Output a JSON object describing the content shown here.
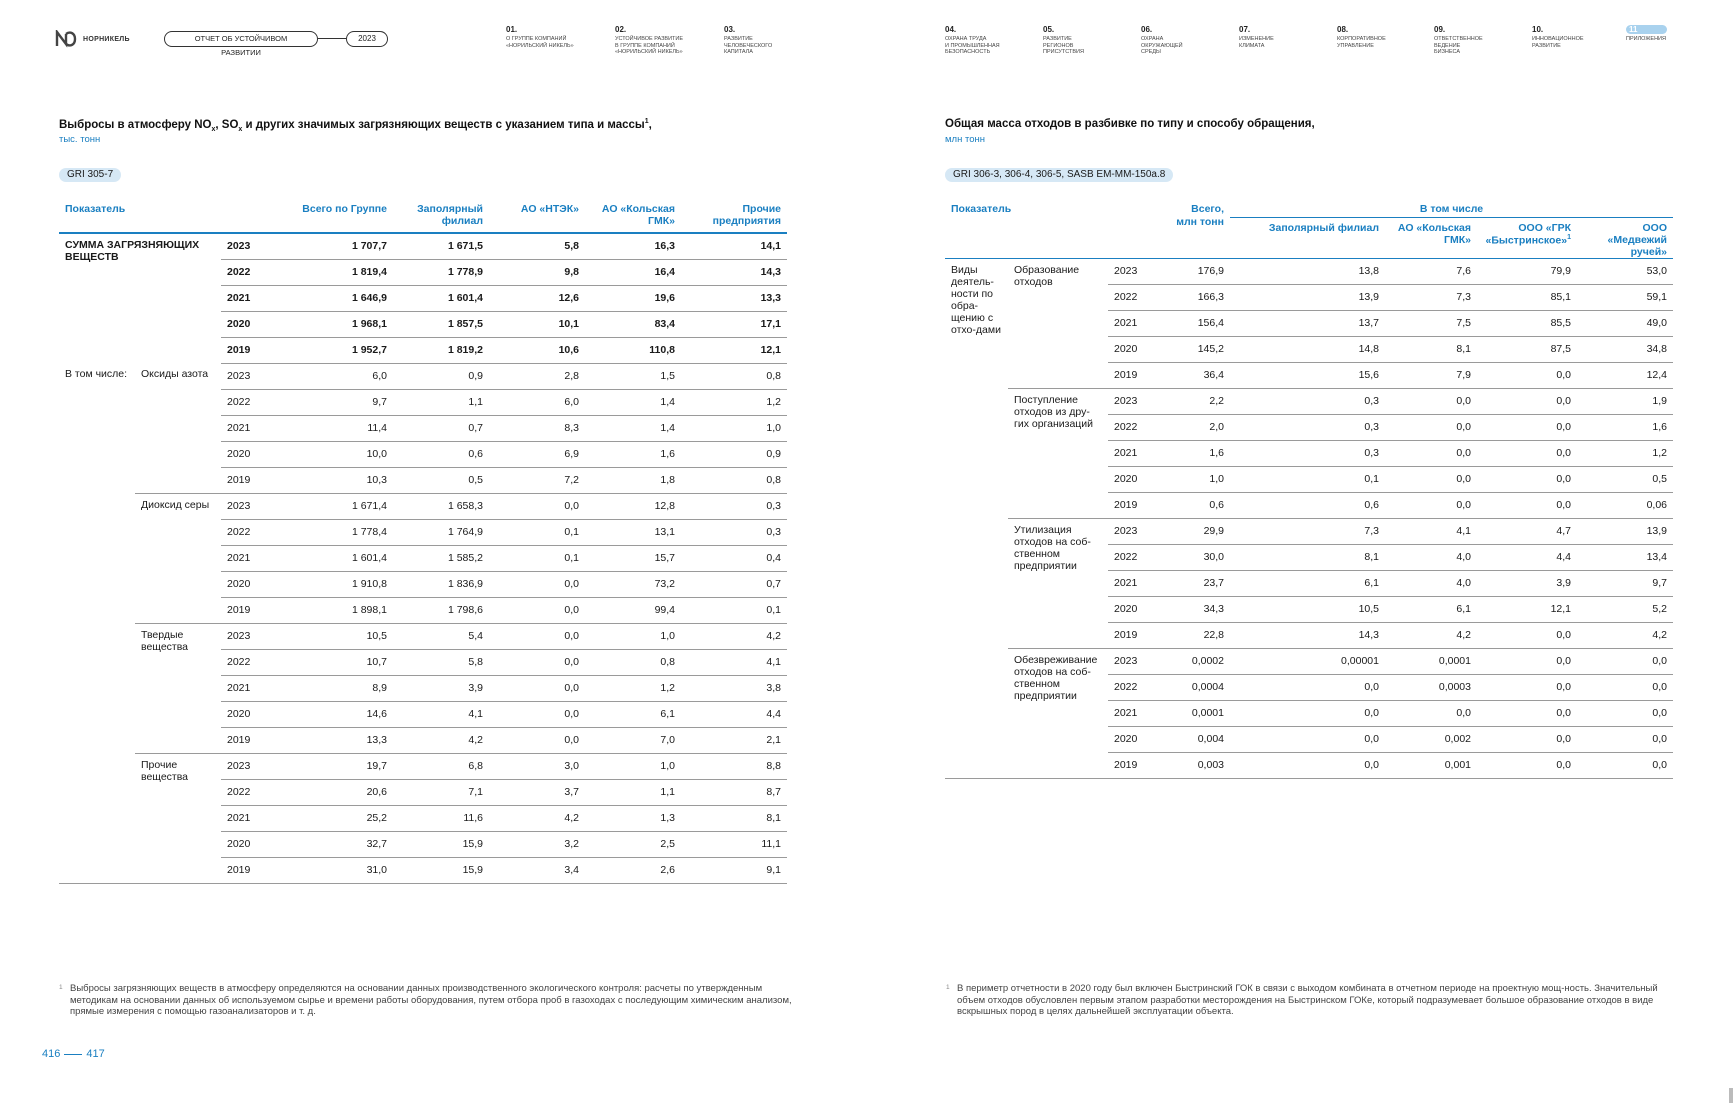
{
  "header": {
    "logo_text": "НОРНИКЕЛЬ",
    "report_label": "ОТЧЕТ ОБ УСТОЙЧИВОМ РАЗВИТИИ",
    "year": "2023",
    "nav": [
      {
        "num": "01.",
        "title": "О группе компаний\n«Норильский никель»"
      },
      {
        "num": "02.",
        "title": "Устойчивое развитие\nв группе компаний\n«Норильский никель»"
      },
      {
        "num": "03.",
        "title": "Развитие\nчеловеческого\nкапитала"
      },
      {
        "num": "04.",
        "title": "Охрана труда\nи промышленная\nбезопасность"
      },
      {
        "num": "05.",
        "title": "Развитие\nрегионов\nприсутствия"
      },
      {
        "num": "06.",
        "title": "Охрана\nокружающей\nсреды"
      },
      {
        "num": "07.",
        "title": "Изменение\nклимата"
      },
      {
        "num": "08.",
        "title": "Корпоративное\nуправление"
      },
      {
        "num": "09.",
        "title": "Ответственное\nведение\nбизнеса"
      },
      {
        "num": "10.",
        "title": "Инновационное\nразвитие"
      },
      {
        "num": "11",
        "title": "Приложения"
      }
    ]
  },
  "left": {
    "title_part1": "Выбросы в атмосферу NO",
    "title_sub1": "x",
    "title_part2": ", SO",
    "title_sub2": "x",
    "title_part3": " и других значимых загрязняющих веществ с указанием типа и массы",
    "title_fn": "1",
    "title_end": ",",
    "unit": "тыс. тонн",
    "gri": "GRI 305-7",
    "columns": [
      "Показатель",
      "Всего по Группе",
      "Заполярный филиал",
      "АО «НТЭК»",
      "АО «Кольская ГМК»",
      "Прочие предприятия"
    ],
    "total_label": "СУММА ЗАГРЯЗНЯЮЩИХ ВЕЩЕСТВ",
    "including_label": "В том числе:",
    "total_rows": [
      [
        "2023",
        "1 707,7",
        "1 671,5",
        "5,8",
        "16,3",
        "14,1"
      ],
      [
        "2022",
        "1 819,4",
        "1 778,9",
        "9,8",
        "16,4",
        "14,3"
      ],
      [
        "2021",
        "1 646,9",
        "1 601,4",
        "12,6",
        "19,6",
        "13,3"
      ],
      [
        "2020",
        "1 968,1",
        "1 857,5",
        "10,1",
        "83,4",
        "17,1"
      ],
      [
        "2019",
        "1 952,7",
        "1 819,2",
        "10,6",
        "110,8",
        "12,1"
      ]
    ],
    "groups": [
      {
        "label": "Оксиды азота",
        "rows": [
          [
            "2023",
            "6,0",
            "0,9",
            "2,8",
            "1,5",
            "0,8"
          ],
          [
            "2022",
            "9,7",
            "1,1",
            "6,0",
            "1,4",
            "1,2"
          ],
          [
            "2021",
            "11,4",
            "0,7",
            "8,3",
            "1,4",
            "1,0"
          ],
          [
            "2020",
            "10,0",
            "0,6",
            "6,9",
            "1,6",
            "0,9"
          ],
          [
            "2019",
            "10,3",
            "0,5",
            "7,2",
            "1,8",
            "0,8"
          ]
        ]
      },
      {
        "label": "Диоксид серы",
        "rows": [
          [
            "2023",
            "1 671,4",
            "1 658,3",
            "0,0",
            "12,8",
            "0,3"
          ],
          [
            "2022",
            "1 778,4",
            "1 764,9",
            "0,1",
            "13,1",
            "0,3"
          ],
          [
            "2021",
            "1 601,4",
            "1 585,2",
            "0,1",
            "15,7",
            "0,4"
          ],
          [
            "2020",
            "1 910,8",
            "1 836,9",
            "0,0",
            "73,2",
            "0,7"
          ],
          [
            "2019",
            "1 898,1",
            "1 798,6",
            "0,0",
            "99,4",
            "0,1"
          ]
        ]
      },
      {
        "label": "Твердые вещества",
        "rows": [
          [
            "2023",
            "10,5",
            "5,4",
            "0,0",
            "1,0",
            "4,2"
          ],
          [
            "2022",
            "10,7",
            "5,8",
            "0,0",
            "0,8",
            "4,1"
          ],
          [
            "2021",
            "8,9",
            "3,9",
            "0,0",
            "1,2",
            "3,8"
          ],
          [
            "2020",
            "14,6",
            "4,1",
            "0,0",
            "6,1",
            "4,4"
          ],
          [
            "2019",
            "13,3",
            "4,2",
            "0,0",
            "7,0",
            "2,1"
          ]
        ]
      },
      {
        "label": "Прочие вещества",
        "rows": [
          [
            "2023",
            "19,7",
            "6,8",
            "3,0",
            "1,0",
            "8,8"
          ],
          [
            "2022",
            "20,6",
            "7,1",
            "3,7",
            "1,1",
            "8,7"
          ],
          [
            "2021",
            "25,2",
            "11,6",
            "4,2",
            "1,3",
            "8,1"
          ],
          [
            "2020",
            "32,7",
            "15,9",
            "3,2",
            "2,5",
            "11,1"
          ],
          [
            "2019",
            "31,0",
            "15,9",
            "3,4",
            "2,6",
            "9,1"
          ]
        ]
      }
    ],
    "footnote_mark": "1",
    "footnote": "Выбросы загрязняющих веществ в атмосферу определяются на основании данных производственного экологического контроля: расчеты по утвержденным методикам на основании данных об используемом сырье и времени работы оборудования, путем отбора проб в газоходах с последующим химическим анализом, прямые измерения с помощью газоанализаторов и т. д."
  },
  "right": {
    "title": "Общая масса отходов в разбивке по типу и способу обращения,",
    "unit": "млн тонн",
    "gri": "GRI 306-3, 306-4, 306-5, SASB EM-MM-150a.8",
    "col_indicator": "Показатель",
    "col_total": "Всего, млн тонн",
    "col_including": "В том числе",
    "sub_columns": [
      "Заполярный филиал",
      "АО «Кольская ГМК»",
      "ООО «ГРК «Быстринское»",
      "ООО «Медвежий ручей»"
    ],
    "sub_col_fn": "1",
    "activity_label": "Виды деятель-ности по обра-щению с отхо-дами",
    "groups": [
      {
        "label": "Образование отходов",
        "rows": [
          [
            "2023",
            "176,9",
            "13,8",
            "7,6",
            "79,9",
            "53,0"
          ],
          [
            "2022",
            "166,3",
            "13,9",
            "7,3",
            "85,1",
            "59,1"
          ],
          [
            "2021",
            "156,4",
            "13,7",
            "7,5",
            "85,5",
            "49,0"
          ],
          [
            "2020",
            "145,2",
            "14,8",
            "8,1",
            "87,5",
            "34,8"
          ],
          [
            "2019",
            "36,4",
            "15,6",
            "7,9",
            "0,0",
            "12,4"
          ]
        ]
      },
      {
        "label": "Поступление отходов из дру-гих организаций",
        "rows": [
          [
            "2023",
            "2,2",
            "0,3",
            "0,0",
            "0,0",
            "1,9"
          ],
          [
            "2022",
            "2,0",
            "0,3",
            "0,0",
            "0,0",
            "1,6"
          ],
          [
            "2021",
            "1,6",
            "0,3",
            "0,0",
            "0,0",
            "1,2"
          ],
          [
            "2020",
            "1,0",
            "0,1",
            "0,0",
            "0,0",
            "0,5"
          ],
          [
            "2019",
            "0,6",
            "0,6",
            "0,0",
            "0,0",
            "0,06"
          ]
        ]
      },
      {
        "label": "Утилизация отходов на соб-ственном предприятии",
        "rows": [
          [
            "2023",
            "29,9",
            "7,3",
            "4,1",
            "4,7",
            "13,9"
          ],
          [
            "2022",
            "30,0",
            "8,1",
            "4,0",
            "4,4",
            "13,4"
          ],
          [
            "2021",
            "23,7",
            "6,1",
            "4,0",
            "3,9",
            "9,7"
          ],
          [
            "2020",
            "34,3",
            "10,5",
            "6,1",
            "12,1",
            "5,2"
          ],
          [
            "2019",
            "22,8",
            "14,3",
            "4,2",
            "0,0",
            "4,2"
          ]
        ]
      },
      {
        "label": "Обезвреживание отходов на соб-ственном предприятии",
        "rows": [
          [
            "2023",
            "0,0002",
            "0,00001",
            "0,0001",
            "0,0",
            "0,0"
          ],
          [
            "2022",
            "0,0004",
            "0,0",
            "0,0003",
            "0,0",
            "0,0"
          ],
          [
            "2021",
            "0,0001",
            "0,0",
            "0,0",
            "0,0",
            "0,0"
          ],
          [
            "2020",
            "0,004",
            "0,0",
            "0,002",
            "0,0",
            "0,0"
          ],
          [
            "2019",
            "0,003",
            "0,0",
            "0,001",
            "0,0",
            "0,0"
          ]
        ]
      }
    ],
    "footnote_mark": "1",
    "footnote": "В периметр отчетности в 2020 году был включен Быстринский ГОК в связи с выходом комбината в отчетном периоде на проектную мощ-ность. Значительный объем отходов обусловлен первым этапом разработки месторождения на Быстринском ГОКе, который подразумевает большое образование отходов в виде вскрышных пород в целях дальнейшей эксплуатации объекта."
  },
  "pages": {
    "left": "416",
    "right": "417"
  },
  "colors": {
    "accent": "#1a7fc1",
    "badge_bg": "#d6e8f5",
    "nav_active": "#a9d2ee"
  }
}
